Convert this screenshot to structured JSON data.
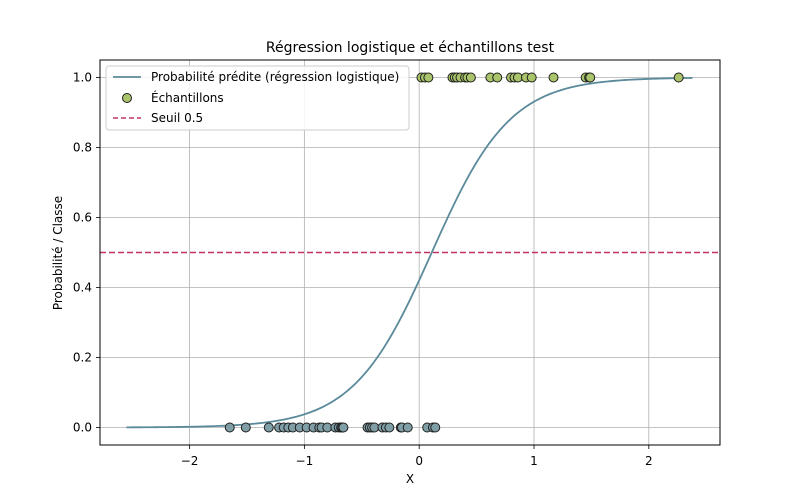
{
  "chart_data": {
    "type": "scatter",
    "title": "Régression logistique et échantillons test",
    "xlabel": "X",
    "ylabel": "Probabilité / Classe",
    "xlim": [
      -2.78,
      2.62
    ],
    "ylim": [
      -0.05,
      1.05
    ],
    "xticks": [
      -2,
      -1,
      0,
      1,
      2
    ],
    "xtick_labels": [
      "−2",
      "−1",
      "0",
      "1",
      "2"
    ],
    "yticks": [
      0.0,
      0.2,
      0.4,
      0.6,
      0.8,
      1.0
    ],
    "ytick_labels": [
      "0.0",
      "0.2",
      "0.4",
      "0.6",
      "0.8",
      "1.0"
    ],
    "grid": true,
    "legend_position": "top-left",
    "curve": {
      "name": "Probabilité prédite (régression logistique)",
      "color": "#5b8a9a",
      "x_range": [
        -2.55,
        2.38
      ],
      "intercept": -0.32,
      "coef": 2.92
    },
    "samples": {
      "name": "Échantillons",
      "class0_color": "#7f9ea6",
      "class1_color": "#a9c46a",
      "edge_color": "#1f1f1f",
      "class0_x": [
        -1.65,
        -1.51,
        -1.31,
        -1.22,
        -1.18,
        -1.14,
        -1.1,
        -1.04,
        -0.98,
        -0.92,
        -0.87,
        -0.85,
        -0.8,
        -0.73,
        -0.7,
        -0.68,
        -0.67,
        -0.66,
        -0.45,
        -0.43,
        -0.41,
        -0.39,
        -0.32,
        -0.29,
        -0.26,
        -0.16,
        -0.15,
        -0.1,
        0.07,
        0.12,
        0.14
      ],
      "class1_x": [
        0.02,
        0.05,
        0.08,
        0.29,
        0.31,
        0.33,
        0.36,
        0.4,
        0.42,
        0.45,
        0.62,
        0.68,
        0.8,
        0.83,
        0.86,
        0.93,
        0.98,
        1.17,
        1.45,
        1.48,
        1.49,
        2.26
      ]
    },
    "threshold": {
      "name": "Seuil 0.5",
      "y": 0.5,
      "color": "#c2335f"
    }
  }
}
